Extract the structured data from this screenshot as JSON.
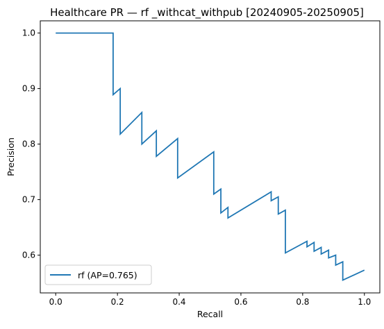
{
  "chart_data": {
    "type": "line",
    "title": "Healthcare PR — rf _withcat_withpub [20240905-20250905]",
    "xlabel": "Recall",
    "ylabel": "Precision",
    "xlim": [
      -0.05,
      1.05
    ],
    "ylim": [
      0.532,
      1.022
    ],
    "xticks": [
      0.0,
      0.2,
      0.4,
      0.6,
      0.8,
      1.0
    ],
    "xtick_labels": [
      "0.0",
      "0.2",
      "0.4",
      "0.6",
      "0.8",
      "1.0"
    ],
    "yticks": [
      0.6,
      0.7,
      0.8,
      0.9,
      1.0
    ],
    "ytick_labels": [
      "0.6",
      "0.7",
      "0.8",
      "0.9",
      "1.0"
    ],
    "grid": false,
    "legend_position": "lower-left",
    "series": [
      {
        "name": "rf (AP=0.765)",
        "color": "#1f77b4",
        "x": [
          0.0,
          0.186,
          0.186,
          0.209,
          0.209,
          0.279,
          0.279,
          0.326,
          0.326,
          0.395,
          0.395,
          0.512,
          0.512,
          0.535,
          0.535,
          0.558,
          0.558,
          0.698,
          0.698,
          0.721,
          0.721,
          0.744,
          0.744,
          0.814,
          0.814,
          0.837,
          0.837,
          0.86,
          0.86,
          0.884,
          0.884,
          0.907,
          0.907,
          0.93,
          0.93,
          1.0
        ],
        "y": [
          1.0,
          1.0,
          0.889,
          0.9,
          0.818,
          0.857,
          0.8,
          0.824,
          0.778,
          0.81,
          0.739,
          0.786,
          0.71,
          0.719,
          0.676,
          0.686,
          0.667,
          0.714,
          0.698,
          0.705,
          0.674,
          0.681,
          0.604,
          0.625,
          0.615,
          0.623,
          0.607,
          0.614,
          0.602,
          0.609,
          0.595,
          0.6,
          0.582,
          0.588,
          0.555,
          0.573
        ]
      }
    ]
  }
}
